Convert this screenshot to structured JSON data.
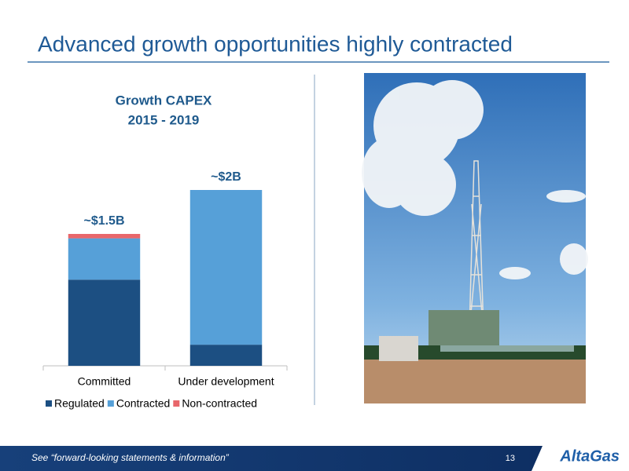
{
  "header": {
    "title": "Advanced growth opportunities highly contracted"
  },
  "chart_data": {
    "type": "bar",
    "stacked": true,
    "title": "Growth CAPEX",
    "subtitle": "2015 - 2019",
    "categories": [
      "Committed",
      "Under development"
    ],
    "series": [
      {
        "name": "Regulated",
        "color": "#1c4f82",
        "values": [
          0.98,
          0.24
        ]
      },
      {
        "name": "Contracted",
        "color": "#56a0d8",
        "values": [
          0.47,
          1.76
        ]
      },
      {
        "name": "Non-contracted",
        "color": "#e8676b",
        "values": [
          0.05,
          0
        ]
      }
    ],
    "annotations": [
      "~$1.5B",
      "~$2B"
    ]
  },
  "footer": {
    "note": "See “forward-looking statements & information”",
    "page": "13",
    "logo": "AltaGas"
  }
}
